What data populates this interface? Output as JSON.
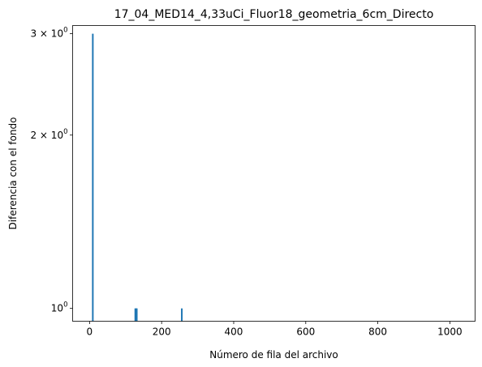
{
  "chart_data": {
    "type": "bar",
    "title": "17_04_MED14_4,33uCi_Fluor18_geometria_6cm_Directo",
    "xlabel": "Número de fila del archivo",
    "ylabel": "Diferencia con el fondo",
    "xlim": [
      -47,
      1070
    ],
    "ylim": [
      0.95,
      3.1
    ],
    "y_scale": "log",
    "x_ticks": [
      {
        "value": 0,
        "label": "0"
      },
      {
        "value": 200,
        "label": "200"
      },
      {
        "value": 400,
        "label": "400"
      },
      {
        "value": 600,
        "label": "600"
      },
      {
        "value": 800,
        "label": "800"
      },
      {
        "value": 1000,
        "label": "1000"
      }
    ],
    "y_ticks": [
      {
        "value": 1,
        "label_base": "10",
        "label_exp": "0"
      },
      {
        "value": 2,
        "label_base": "2 × 10",
        "label_exp": "0"
      },
      {
        "value": 3,
        "label_base": "3 × 10",
        "label_exp": "0"
      }
    ],
    "color": "#1f77b4",
    "series": [
      {
        "x": [
          9,
          127,
          129,
          131,
          256
        ],
        "values": [
          3,
          1,
          1,
          1,
          1
        ]
      }
    ]
  }
}
